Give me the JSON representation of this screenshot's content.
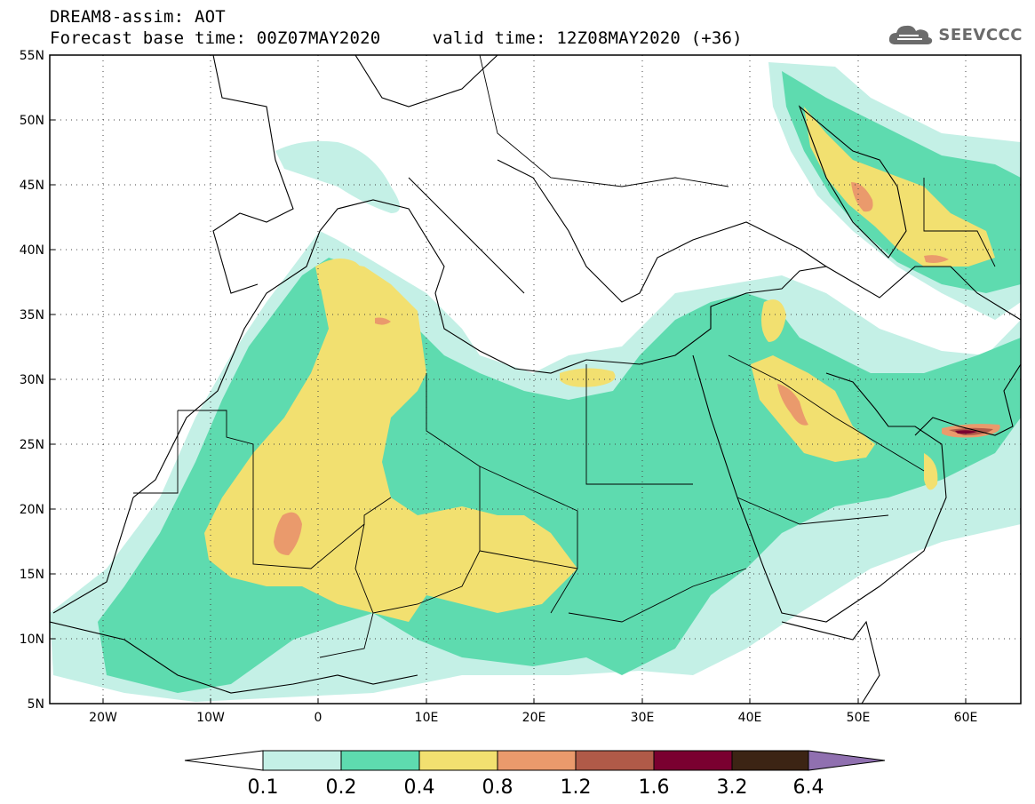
{
  "header": {
    "title": "DREAM8-assim: AOT",
    "base_time_label": "Forecast base time: 00Z07MAY2020",
    "valid_time_label": "valid time: 12Z08MAY2020 (+36)"
  },
  "logo": {
    "text": "SEEVCCC",
    "icon": "cloud-icon",
    "color": "#6b6b6b"
  },
  "map": {
    "lon_range": [
      -25,
      65
    ],
    "lat_range": [
      5,
      55
    ],
    "lat_labels": [
      "55N",
      "50N",
      "45N",
      "40N",
      "35N",
      "30N",
      "25N",
      "20N",
      "15N",
      "10N",
      "5N"
    ],
    "lon_labels": [
      "20W",
      "10W",
      "0",
      "10E",
      "20E",
      "30E",
      "40E",
      "50E",
      "60E"
    ],
    "grid": "dotted"
  },
  "colorbar": {
    "labels": [
      "0.1",
      "0.2",
      "0.4",
      "0.8",
      "1.2",
      "1.6",
      "3.2",
      "6.4"
    ],
    "colors": [
      "#ffffff",
      "#c4f0e6",
      "#5edbaf",
      "#f2e070",
      "#ea9a6c",
      "#b05a48",
      "#7a0030",
      "#3c2414",
      "#9070b0"
    ]
  }
}
